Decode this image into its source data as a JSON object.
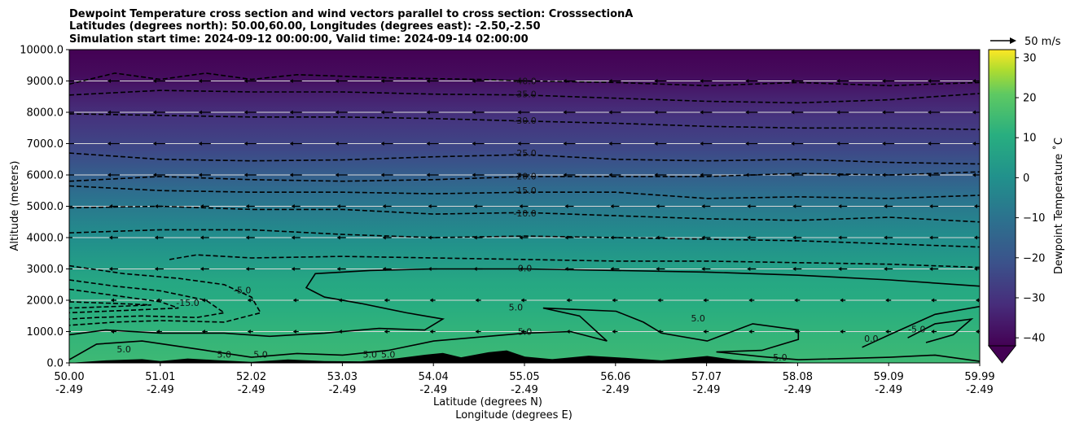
{
  "chart_data": {
    "type": "contour",
    "title_lines": [
      "Dewpoint Temperature cross section and wind vectors parallel to cross section: CrosssectionA",
      "Latitudes (degrees north): 50.00,60.00, Longitudes (degrees east): -2.50,-2.50",
      "Simulation start time: 2024-09-12 00:00:00, Valid time: 2024-09-14 02:00:00"
    ],
    "ylabel": "Altitude (meters)",
    "xlabel_lat": "Latitude (degrees N)",
    "xlabel_lon": "Longitude (degrees E)",
    "ylim": [
      0,
      10000
    ],
    "y_ticks": [
      "0.0",
      "1000.0",
      "2000.0",
      "3000.0",
      "4000.0",
      "5000.0",
      "6000.0",
      "7000.0",
      "8000.0",
      "9000.0",
      "10000.0"
    ],
    "x_ticks": [
      {
        "lat": "50.00",
        "lon": "-2.49"
      },
      {
        "lat": "51.01",
        "lon": "-2.49"
      },
      {
        "lat": "52.02",
        "lon": "-2.49"
      },
      {
        "lat": "53.03",
        "lon": "-2.49"
      },
      {
        "lat": "54.04",
        "lon": "-2.49"
      },
      {
        "lat": "55.05",
        "lon": "-2.49"
      },
      {
        "lat": "56.06",
        "lon": "-2.49"
      },
      {
        "lat": "57.07",
        "lon": "-2.49"
      },
      {
        "lat": "58.08",
        "lon": "-2.49"
      },
      {
        "lat": "59.09",
        "lon": "-2.49"
      },
      {
        "lat": "59.99",
        "lon": "-2.49"
      }
    ],
    "xlim": [
      50.0,
      59.99
    ],
    "colorbar": {
      "label": "Dewpoint Temperature ˚C",
      "min": -42,
      "max": 32,
      "ticks": [
        "30",
        "20",
        "10",
        "0",
        "−10",
        "−20",
        "−30",
        "−40"
      ],
      "tick_values": [
        30,
        20,
        10,
        0,
        -10,
        -20,
        -30,
        -40
      ],
      "colormap": "viridis",
      "extend": "min"
    },
    "wind_reference": "50 m/s",
    "contour_labels": [
      {
        "text": "-40.0",
        "lat": 55.0,
        "alt": 8980
      },
      {
        "text": "-35.0",
        "lat": 55.0,
        "alt": 8560
      },
      {
        "text": "-30.0",
        "lat": 55.0,
        "alt": 7720
      },
      {
        "text": "-25.0",
        "lat": 55.0,
        "alt": 6680
      },
      {
        "text": "-20.0",
        "lat": 55.0,
        "alt": 5940
      },
      {
        "text": "-15.0",
        "lat": 55.0,
        "alt": 5480
      },
      {
        "text": "-10.0",
        "lat": 55.0,
        "alt": 4750
      },
      {
        "text": "0.0",
        "lat": 55.0,
        "alt": 3000
      },
      {
        "text": "5.0",
        "lat": 55.0,
        "alt": 980
      },
      {
        "text": "-5.0",
        "lat": 51.9,
        "alt": 2300
      },
      {
        "text": "-15.0",
        "lat": 51.3,
        "alt": 1900
      },
      {
        "text": "5.0",
        "lat": 50.6,
        "alt": 420
      },
      {
        "text": "5.0",
        "lat": 51.7,
        "alt": 250
      },
      {
        "text": "5.0",
        "lat": 52.1,
        "alt": 250
      },
      {
        "text": "5.0",
        "lat": 53.3,
        "alt": 250
      },
      {
        "text": "5.0",
        "lat": 53.5,
        "alt": 250
      },
      {
        "text": "5.0",
        "lat": 54.9,
        "alt": 1750
      },
      {
        "text": "5.0",
        "lat": 56.9,
        "alt": 1400
      },
      {
        "text": "5.0",
        "lat": 57.8,
        "alt": 150
      },
      {
        "text": "0.0",
        "lat": 58.8,
        "alt": 750
      },
      {
        "text": "-5.0",
        "lat": 59.3,
        "alt": 1050
      }
    ],
    "contours": [
      {
        "level": "-40.0",
        "dashed": true,
        "points": [
          [
            50.0,
            8900
          ],
          [
            50.5,
            9250
          ],
          [
            51.0,
            9050
          ],
          [
            51.5,
            9250
          ],
          [
            52.0,
            9050
          ],
          [
            52.5,
            9200
          ],
          [
            53.5,
            9100
          ],
          [
            54.5,
            9050
          ],
          [
            55.0,
            9000
          ],
          [
            56.0,
            8950
          ],
          [
            57.0,
            8850
          ],
          [
            58.0,
            8950
          ],
          [
            59.0,
            8850
          ],
          [
            59.99,
            8950
          ]
        ]
      },
      {
        "level": "-35.0",
        "dashed": true,
        "points": [
          [
            50.0,
            8550
          ],
          [
            51.0,
            8700
          ],
          [
            52.0,
            8650
          ],
          [
            53.0,
            8650
          ],
          [
            54.0,
            8580
          ],
          [
            55.0,
            8550
          ],
          [
            56.0,
            8450
          ],
          [
            57.0,
            8350
          ],
          [
            58.0,
            8300
          ],
          [
            59.0,
            8400
          ],
          [
            59.99,
            8600
          ]
        ]
      },
      {
        "level": "-30.0",
        "dashed": true,
        "points": [
          [
            50.0,
            7950
          ],
          [
            51.0,
            7900
          ],
          [
            52.0,
            7850
          ],
          [
            53.0,
            7850
          ],
          [
            54.0,
            7800
          ],
          [
            55.0,
            7720
          ],
          [
            56.0,
            7650
          ],
          [
            57.0,
            7550
          ],
          [
            58.0,
            7500
          ],
          [
            59.0,
            7500
          ],
          [
            59.99,
            7450
          ]
        ]
      },
      {
        "level": "-25.0",
        "dashed": true,
        "points": [
          [
            50.0,
            6700
          ],
          [
            51.0,
            6500
          ],
          [
            52.0,
            6450
          ],
          [
            53.0,
            6480
          ],
          [
            54.0,
            6580
          ],
          [
            55.0,
            6650
          ],
          [
            56.0,
            6500
          ],
          [
            57.0,
            6450
          ],
          [
            58.0,
            6500
          ],
          [
            59.0,
            6400
          ],
          [
            59.99,
            6350
          ]
        ]
      },
      {
        "level": "-20.0",
        "dashed": true,
        "points": [
          [
            50.0,
            5800
          ],
          [
            51.0,
            5950
          ],
          [
            52.0,
            5850
          ],
          [
            53.0,
            5800
          ],
          [
            54.0,
            5850
          ],
          [
            55.0,
            5950
          ],
          [
            56.0,
            5950
          ],
          [
            57.0,
            5950
          ],
          [
            58.0,
            6050
          ],
          [
            59.0,
            6000
          ],
          [
            59.99,
            6100
          ]
        ]
      },
      {
        "level": "-15.0",
        "dashed": true,
        "points": [
          [
            50.0,
            5650
          ],
          [
            51.0,
            5500
          ],
          [
            52.0,
            5450
          ],
          [
            53.0,
            5450
          ],
          [
            54.0,
            5400
          ],
          [
            55.0,
            5450
          ],
          [
            56.0,
            5450
          ],
          [
            57.0,
            5250
          ],
          [
            58.0,
            5300
          ],
          [
            59.0,
            5250
          ],
          [
            59.99,
            5350
          ]
        ]
      },
      {
        "level": "-10.0",
        "dashed": true,
        "points": [
          [
            50.0,
            4950
          ],
          [
            51.0,
            5000
          ],
          [
            52.0,
            4900
          ],
          [
            53.0,
            4900
          ],
          [
            54.0,
            4750
          ],
          [
            55.0,
            4800
          ],
          [
            56.0,
            4700
          ],
          [
            57.0,
            4600
          ],
          [
            58.0,
            4550
          ],
          [
            59.0,
            4650
          ],
          [
            59.99,
            4500
          ]
        ]
      },
      {
        "level": "-5.0",
        "dashed": true,
        "points": [
          [
            50.0,
            4150
          ],
          [
            51.0,
            4250
          ],
          [
            52.0,
            4250
          ],
          [
            53.0,
            4100
          ],
          [
            54.0,
            4000
          ],
          [
            55.0,
            4050
          ],
          [
            56.0,
            4000
          ],
          [
            57.0,
            3950
          ],
          [
            58.0,
            3900
          ],
          [
            59.0,
            3800
          ],
          [
            59.99,
            3700
          ]
        ]
      },
      {
        "level": "-5.0",
        "dashed": true,
        "points": [
          [
            51.1,
            3300
          ],
          [
            51.4,
            3450
          ],
          [
            52.0,
            3350
          ],
          [
            53.0,
            3400
          ],
          [
            54.0,
            3350
          ],
          [
            55.0,
            3300
          ],
          [
            56.0,
            3250
          ],
          [
            57.0,
            3250
          ],
          [
            58.0,
            3200
          ],
          [
            59.0,
            3150
          ],
          [
            59.99,
            3050
          ]
        ]
      },
      {
        "level": "-5.0",
        "dashed": true,
        "points": [
          [
            50.0,
            3100
          ],
          [
            50.6,
            2850
          ],
          [
            51.2,
            2700
          ],
          [
            51.7,
            2500
          ],
          [
            52.0,
            2100
          ],
          [
            52.1,
            1600
          ],
          [
            51.7,
            1300
          ],
          [
            51.0,
            1350
          ],
          [
            50.5,
            1300
          ],
          [
            50.0,
            1200
          ]
        ]
      },
      {
        "level": "-10.0",
        "dashed": true,
        "points": [
          [
            50.0,
            2650
          ],
          [
            50.5,
            2450
          ],
          [
            51.0,
            2300
          ],
          [
            51.5,
            2000
          ],
          [
            51.7,
            1600
          ],
          [
            51.4,
            1450
          ],
          [
            50.8,
            1500
          ],
          [
            50.3,
            1450
          ],
          [
            50.0,
            1400
          ]
        ]
      },
      {
        "level": "-15.0",
        "dashed": true,
        "points": [
          [
            50.0,
            2350
          ],
          [
            50.5,
            2150
          ],
          [
            51.0,
            1950
          ],
          [
            51.2,
            1750
          ],
          [
            50.8,
            1700
          ],
          [
            50.4,
            1650
          ],
          [
            50.0,
            1600
          ]
        ]
      },
      {
        "level": "-20.0",
        "dashed": true,
        "points": [
          [
            50.0,
            1950
          ],
          [
            50.5,
            1900
          ],
          [
            50.9,
            1850
          ],
          [
            50.5,
            1800
          ],
          [
            50.0,
            1750
          ]
        ]
      },
      {
        "level": "0.0",
        "dashed": false,
        "points": [
          [
            50.0,
            900
          ],
          [
            50.4,
            1050
          ],
          [
            51.0,
            950
          ],
          [
            51.7,
            950
          ],
          [
            52.2,
            850
          ],
          [
            52.8,
            950
          ],
          [
            53.4,
            1100
          ],
          [
            53.9,
            1050
          ],
          [
            54.1,
            1400
          ],
          [
            53.7,
            1600
          ],
          [
            53.2,
            1900
          ],
          [
            52.8,
            2100
          ],
          [
            52.6,
            2400
          ],
          [
            52.7,
            2850
          ],
          [
            53.3,
            2950
          ],
          [
            54.0,
            3000
          ],
          [
            55.0,
            3000
          ],
          [
            56.0,
            2950
          ],
          [
            57.0,
            2900
          ],
          [
            58.0,
            2800
          ],
          [
            59.0,
            2650
          ],
          [
            59.99,
            2450
          ]
        ]
      },
      {
        "level": "5.0",
        "dashed": false,
        "points": [
          [
            50.0,
            100
          ],
          [
            50.3,
            600
          ],
          [
            50.8,
            700
          ],
          [
            51.5,
            400
          ],
          [
            52.0,
            180
          ],
          [
            52.5,
            300
          ],
          [
            53.0,
            250
          ],
          [
            53.5,
            400
          ],
          [
            54.0,
            700
          ],
          [
            55.0,
            950
          ],
          [
            55.5,
            1000
          ],
          [
            55.9,
            700
          ],
          [
            55.6,
            1500
          ],
          [
            55.2,
            1750
          ],
          [
            56.0,
            1650
          ],
          [
            56.3,
            1300
          ],
          [
            56.5,
            950
          ],
          [
            57.0,
            700
          ],
          [
            57.5,
            1250
          ],
          [
            58.0,
            1050
          ],
          [
            58.0,
            750
          ],
          [
            57.6,
            400
          ],
          [
            57.1,
            350
          ],
          [
            57.6,
            200
          ],
          [
            58.0,
            100
          ],
          [
            59.0,
            180
          ],
          [
            59.5,
            250
          ],
          [
            59.99,
            50
          ]
        ]
      },
      {
        "level": "0.0",
        "dashed": false,
        "points": [
          [
            58.7,
            500
          ],
          [
            59.0,
            900
          ],
          [
            59.5,
            1550
          ],
          [
            59.99,
            1800
          ]
        ]
      },
      {
        "level": "-5.0",
        "dashed": false,
        "points": [
          [
            59.2,
            800
          ],
          [
            59.5,
            1250
          ],
          [
            59.9,
            1400
          ],
          [
            59.7,
            900
          ],
          [
            59.4,
            650
          ]
        ]
      }
    ],
    "terrain": [
      [
        50.0,
        0
      ],
      [
        50.4,
        80
      ],
      [
        50.8,
        120
      ],
      [
        51.0,
        60
      ],
      [
        51.3,
        140
      ],
      [
        51.6,
        90
      ],
      [
        52.0,
        30
      ],
      [
        52.4,
        110
      ],
      [
        52.8,
        60
      ],
      [
        53.2,
        50
      ],
      [
        53.6,
        150
      ],
      [
        53.9,
        260
      ],
      [
        54.1,
        320
      ],
      [
        54.3,
        180
      ],
      [
        54.6,
        340
      ],
      [
        54.8,
        400
      ],
      [
        55.0,
        200
      ],
      [
        55.3,
        120
      ],
      [
        55.7,
        230
      ],
      [
        56.1,
        160
      ],
      [
        56.5,
        80
      ],
      [
        57.0,
        220
      ],
      [
        57.3,
        100
      ],
      [
        57.7,
        40
      ],
      [
        58.0,
        10
      ],
      [
        59.0,
        0
      ],
      [
        59.99,
        0
      ]
    ],
    "shading_bands": [
      {
        "alt": 10000,
        "value": -42
      },
      {
        "alt": 9200,
        "value": -40
      },
      {
        "alt": 8600,
        "value": -36
      },
      {
        "alt": 7800,
        "value": -31
      },
      {
        "alt": 6800,
        "value": -26
      },
      {
        "alt": 6000,
        "value": -20
      },
      {
        "alt": 5400,
        "value": -15
      },
      {
        "alt": 4800,
        "value": -11
      },
      {
        "alt": 4000,
        "value": -6
      },
      {
        "alt": 3300,
        "value": -2
      },
      {
        "alt": 2600,
        "value": 2
      },
      {
        "alt": 1800,
        "value": 4
      },
      {
        "alt": 1000,
        "value": 6
      },
      {
        "alt": 0,
        "value": 8
      }
    ],
    "wind": {
      "levels": [
        9000,
        8000,
        7000,
        6000,
        5000,
        4000,
        3000,
        2000,
        1000
      ],
      "cols": [
        50.0,
        50.5,
        51.0,
        51.5,
        52.0,
        52.5,
        53.0,
        53.5,
        54.0,
        54.5,
        55.0,
        55.5,
        56.0,
        56.5,
        57.0,
        57.5,
        58.0,
        58.5,
        59.0,
        59.5,
        59.99
      ]
    }
  }
}
